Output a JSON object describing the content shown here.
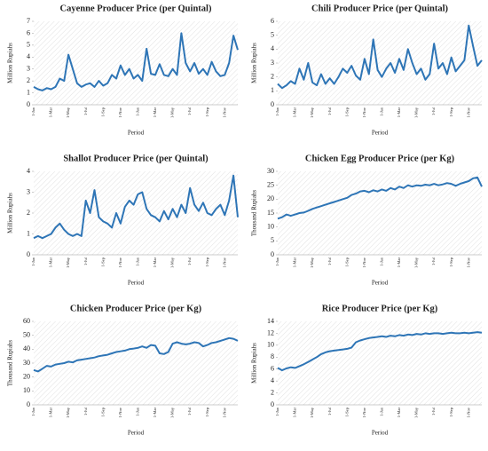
{
  "chart_data": [
    {
      "type": "line",
      "title": "Cayenne Producer Price (per Quintal)",
      "x_label": "Period",
      "y_label": "Million Rupiahs",
      "categories": [
        "1-Jan",
        null,
        null,
        null,
        "1-Mar",
        null,
        null,
        null,
        "1-May",
        null,
        null,
        null,
        "1-Jul",
        null,
        null,
        null,
        "1-Sep",
        null,
        null,
        null,
        "1-Nov",
        null,
        null,
        null,
        "1-Jan",
        null,
        null,
        null,
        "1-Mar",
        null,
        null,
        null,
        "1-May",
        null,
        null,
        null,
        "1-Jul",
        null,
        null,
        null,
        "1-Sep",
        null,
        null,
        null,
        "1-Nov",
        null,
        null,
        null
      ],
      "values": [
        1.5,
        1.3,
        1.2,
        1.4,
        1.3,
        1.5,
        2.2,
        2.0,
        4.2,
        3.0,
        1.8,
        1.5,
        1.7,
        1.8,
        1.5,
        2.0,
        1.6,
        1.8,
        2.5,
        2.2,
        3.3,
        2.5,
        3.0,
        2.2,
        2.5,
        2.0,
        4.7,
        2.6,
        2.5,
        3.4,
        2.5,
        2.4,
        3.0,
        2.5,
        6.0,
        3.5,
        2.8,
        3.5,
        2.6,
        3.0,
        2.5,
        3.6,
        2.8,
        2.4,
        2.5,
        3.5,
        5.8,
        4.6
      ],
      "color": "#2e75b6",
      "ylim": [
        0,
        7
      ],
      "yticks": [
        0,
        1,
        2,
        3,
        4,
        5,
        6,
        7
      ],
      "grid": false
    },
    {
      "type": "line",
      "title": "Chili Producer Price (per Quintal)",
      "x_label": "Period",
      "y_label": "Million Rupiahs",
      "categories": [
        "1-Jan",
        null,
        null,
        null,
        "1-Mar",
        null,
        null,
        null,
        "1-May",
        null,
        null,
        null,
        "1-Jul",
        null,
        null,
        null,
        "1-Sep",
        null,
        null,
        null,
        "1-Nov",
        null,
        null,
        null,
        "1-Jan",
        null,
        null,
        null,
        "1-Mar",
        null,
        null,
        null,
        "1-May",
        null,
        null,
        null,
        "1-Jul",
        null,
        null,
        null,
        "1-Sep",
        null,
        null,
        null,
        "1-Nov",
        null,
        null,
        null
      ],
      "values": [
        1.5,
        1.2,
        1.4,
        1.7,
        1.5,
        2.6,
        1.8,
        3.0,
        1.6,
        1.4,
        2.2,
        1.5,
        1.9,
        1.5,
        2.0,
        2.6,
        2.3,
        2.8,
        2.1,
        1.8,
        3.3,
        2.2,
        4.7,
        2.5,
        2.0,
        2.6,
        3.0,
        2.3,
        3.3,
        2.5,
        4.0,
        3.0,
        2.2,
        2.6,
        1.8,
        2.2,
        4.4,
        2.6,
        3.0,
        2.2,
        3.4,
        2.4,
        2.8,
        3.2,
        5.7,
        4.2,
        2.8,
        3.2
      ],
      "color": "#2e75b6",
      "ylim": [
        0,
        6
      ],
      "yticks": [
        0,
        1,
        2,
        3,
        4,
        5,
        6
      ],
      "grid": false
    },
    {
      "type": "line",
      "title": "Shallot Producer Price (per Quintal)",
      "x_label": "Period",
      "y_label": "Million Rupiahs",
      "categories": [
        "1-Jan",
        null,
        null,
        null,
        "1-Mar",
        null,
        null,
        null,
        "1-May",
        null,
        null,
        null,
        "1-Jul",
        null,
        null,
        null,
        "1-Sep",
        null,
        null,
        null,
        "1-Nov",
        null,
        null,
        null,
        "1-Jan",
        null,
        null,
        null,
        "1-Mar",
        null,
        null,
        null,
        "1-May",
        null,
        null,
        null,
        "1-Jul",
        null,
        null,
        null,
        "1-Sep",
        null,
        null,
        null,
        "1-Nov",
        null,
        null,
        null
      ],
      "values": [
        0.8,
        0.9,
        0.8,
        0.9,
        1.0,
        1.3,
        1.5,
        1.2,
        1.0,
        0.9,
        1.0,
        0.9,
        2.6,
        2.0,
        3.1,
        1.8,
        1.6,
        1.5,
        1.3,
        2.0,
        1.5,
        2.3,
        2.6,
        2.4,
        2.9,
        3.0,
        2.2,
        1.9,
        1.8,
        1.6,
        2.1,
        1.7,
        2.2,
        1.8,
        2.4,
        2.0,
        3.2,
        2.4,
        2.1,
        2.5,
        2.0,
        1.9,
        2.2,
        2.4,
        1.9,
        2.6,
        3.8,
        1.8
      ],
      "color": "#2e75b6",
      "ylim": [
        0,
        4
      ],
      "yticks": [
        0,
        1,
        2,
        3,
        4
      ],
      "grid": false
    },
    {
      "type": "line",
      "title": "Chicken Egg Producer Price (per Kg)",
      "x_label": "Period",
      "y_label": "Thousand Rupiahs",
      "categories": [
        "1-Jan",
        null,
        null,
        null,
        "1-Mar",
        null,
        null,
        null,
        "1-May",
        null,
        null,
        null,
        "1-Jul",
        null,
        null,
        null,
        "1-Sep",
        null,
        null,
        null,
        "1-Nov",
        null,
        null,
        null,
        "1-Jan",
        null,
        null,
        null,
        "1-Mar",
        null,
        null,
        null,
        "1-May",
        null,
        null,
        null,
        "1-Jul",
        null,
        null,
        null,
        "1-Sep",
        null,
        null,
        null,
        "1-Nov",
        null,
        null,
        null
      ],
      "values": [
        13,
        13.5,
        14.5,
        14,
        14.5,
        15,
        15.2,
        15.8,
        16.5,
        17,
        17.5,
        18,
        18.5,
        19,
        19.5,
        20,
        20.5,
        21.5,
        22,
        22.8,
        23,
        22.5,
        23.2,
        22.8,
        23.5,
        23,
        24,
        23.5,
        24.5,
        24,
        25,
        24.5,
        25,
        24.8,
        25.2,
        25,
        25.5,
        25,
        25.3,
        25.8,
        25.5,
        24.8,
        25.5,
        26,
        26.5,
        27.5,
        27.8,
        24.5
      ],
      "color": "#2e75b6",
      "ylim": [
        0,
        30
      ],
      "yticks": [
        0,
        5,
        10,
        15,
        20,
        25,
        30
      ],
      "grid": false
    },
    {
      "type": "line",
      "title": "Chicken Producer Price (per Kg)",
      "x_label": "Period",
      "y_label": "Thousand Rupiahs",
      "categories": [
        "1-Jan",
        null,
        null,
        null,
        "1-Mar",
        null,
        null,
        null,
        "1-May",
        null,
        null,
        null,
        "1-Jul",
        null,
        null,
        null,
        "1-Sep",
        null,
        null,
        null,
        "1-Nov",
        null,
        null,
        null,
        "1-Jan",
        null,
        null,
        null,
        "1-Mar",
        null,
        null,
        null,
        "1-May",
        null,
        null,
        null,
        "1-Jul",
        null,
        null,
        null,
        "1-Sep",
        null,
        null,
        null,
        "1-Nov",
        null,
        null,
        null
      ],
      "values": [
        25,
        24,
        26,
        28,
        27.5,
        29,
        29.5,
        30,
        31,
        30.5,
        32,
        32.5,
        33,
        33.5,
        34,
        35,
        35.5,
        36,
        37,
        38,
        38.5,
        39,
        40,
        40.5,
        41,
        42,
        41,
        43,
        42.5,
        37,
        36.5,
        38,
        44,
        45,
        44,
        43.5,
        44,
        45,
        44.5,
        42,
        43,
        44.5,
        45,
        46,
        47,
        48,
        47.5,
        46
      ],
      "color": "#2e75b6",
      "ylim": [
        0,
        60
      ],
      "yticks": [
        0,
        10,
        20,
        30,
        40,
        50,
        60
      ],
      "grid": false
    },
    {
      "type": "line",
      "title": "Rice Producer Price (per Kg)",
      "x_label": "Period",
      "y_label": "Million Rupiahs",
      "categories": [
        "1-Jan",
        null,
        null,
        null,
        "1-Mar",
        null,
        null,
        null,
        "1-May",
        null,
        null,
        null,
        "1-Jul",
        null,
        null,
        null,
        "1-Sep",
        null,
        null,
        null,
        "1-Nov",
        null,
        null,
        null,
        "1-Jan",
        null,
        null,
        null,
        "1-Mar",
        null,
        null,
        null,
        "1-May",
        null,
        null,
        null,
        "1-Jul",
        null,
        null,
        null,
        "1-Sep",
        null,
        null,
        null,
        "1-Nov",
        null,
        null,
        null
      ],
      "values": [
        6.2,
        5.8,
        6.1,
        6.3,
        6.2,
        6.5,
        6.8,
        7.2,
        7.6,
        8.0,
        8.5,
        8.8,
        9.0,
        9.1,
        9.2,
        9.3,
        9.4,
        9.6,
        10.5,
        10.8,
        11.0,
        11.2,
        11.3,
        11.4,
        11.5,
        11.4,
        11.6,
        11.5,
        11.7,
        11.6,
        11.8,
        11.7,
        11.9,
        11.8,
        12.0,
        11.9,
        12.0,
        12.0,
        11.9,
        12.0,
        12.1,
        12.0,
        12.0,
        12.1,
        12.0,
        12.1,
        12.2,
        12.1
      ],
      "color": "#2e75b6",
      "ylim": [
        0,
        14
      ],
      "yticks": [
        0,
        2,
        4,
        6,
        8,
        10,
        12,
        14
      ],
      "grid": false
    }
  ]
}
